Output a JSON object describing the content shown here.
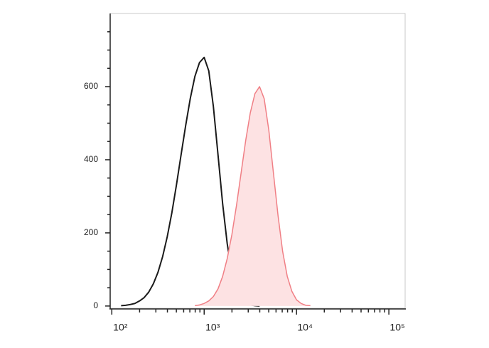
{
  "chart_data": {
    "type": "histogram-overlay",
    "x": [
      126,
      141,
      158,
      178,
      200,
      224,
      251,
      282,
      316,
      355,
      398,
      447,
      501,
      562,
      631,
      708,
      794,
      891,
      1000,
      1122,
      1259,
      1413,
      1585,
      1778,
      1995,
      2239,
      2512,
      2818,
      3162,
      3548,
      3981,
      4467,
      5012,
      5623,
      6310,
      7079,
      7943,
      8913,
      10000,
      11220,
      12589,
      14125,
      15849,
      17783,
      19953
    ],
    "series": [
      {
        "color": "#1a1a1a",
        "filled": false,
        "values": [
          1,
          2,
          4,
          7,
          14,
          23,
          38,
          61,
          92,
          135,
          189,
          255,
          331,
          413,
          494,
          568,
          628,
          666,
          680,
          643,
          545,
          413,
          280,
          170,
          92,
          45,
          19,
          7,
          3,
          1,
          0,
          null,
          null,
          null,
          null,
          null,
          null,
          null,
          null,
          null,
          null,
          null,
          null,
          null,
          null
        ]
      },
      {
        "color": "#f07f85",
        "fill": "#fde2e3",
        "filled": true,
        "values": [
          null,
          null,
          null,
          null,
          null,
          null,
          null,
          null,
          null,
          null,
          null,
          null,
          null,
          null,
          null,
          null,
          1,
          3,
          7,
          14,
          26,
          47,
          81,
          130,
          195,
          275,
          364,
          453,
          529,
          581,
          600,
          567,
          481,
          364,
          247,
          149,
          81,
          40,
          17,
          7,
          2,
          1,
          null,
          null,
          null
        ]
      }
    ],
    "xlog": true,
    "xlim": [
      96,
      150000
    ],
    "xticks": [
      {
        "value": 100,
        "label": "10²"
      },
      {
        "value": 1000,
        "label": "10³"
      },
      {
        "value": 10000,
        "label": "10⁴"
      },
      {
        "value": 100000,
        "label": "10⁵"
      }
    ],
    "xminorticks": [
      200,
      300,
      400,
      500,
      600,
      700,
      800,
      900,
      2000,
      3000,
      4000,
      5000,
      6000,
      7000,
      8000,
      9000,
      20000,
      30000,
      40000,
      50000,
      60000,
      70000,
      80000,
      90000
    ],
    "ylim": [
      -8,
      800
    ],
    "yticks": [
      0,
      200,
      400,
      600
    ],
    "yminorticks": [
      50,
      100,
      150,
      250,
      300,
      350,
      450,
      500,
      550,
      650,
      700,
      750
    ]
  }
}
